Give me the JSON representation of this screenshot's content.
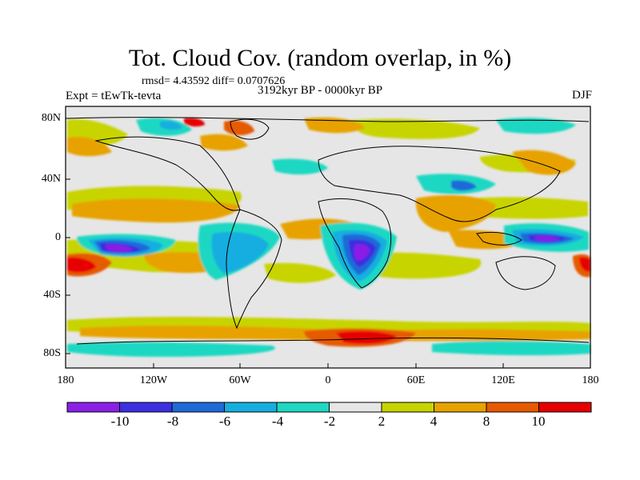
{
  "title": "Tot. Cloud Cov. (random overlap, in %)",
  "stats": "rmsd= 4.43592 diff= 0.0707626",
  "experiment": "Expt = tEwTk-tevta",
  "period": "3192kyr BP - 0000kyr BP",
  "season": "DJF",
  "lat_labels": [
    "80N",
    "40N",
    "0",
    "40S",
    "80S"
  ],
  "lon_labels": [
    "180",
    "120W",
    "60W",
    "0",
    "60E",
    "120E",
    "180"
  ],
  "colorbar": {
    "labels": [
      "-10",
      "-8",
      "-6",
      "-4",
      "-2",
      "2",
      "4",
      "8",
      "10"
    ],
    "colors": [
      "#8b1fe6",
      "#3b2fe0",
      "#1f6ad8",
      "#16aee0",
      "#1fd8c2",
      "#e6e6e6",
      "#c8d400",
      "#e7a200",
      "#e65a00",
      "#e60000"
    ]
  },
  "colors": {
    "purple": "#8b1fe6",
    "blue": "#3b2fe0",
    "midblue": "#1f6ad8",
    "cyan": "#16aee0",
    "teal": "#1fd8c2",
    "white": "#e6e6e6",
    "yellow": "#c8d400",
    "orange": "#e7a200",
    "darkorange": "#e65a00",
    "red": "#e60000"
  }
}
